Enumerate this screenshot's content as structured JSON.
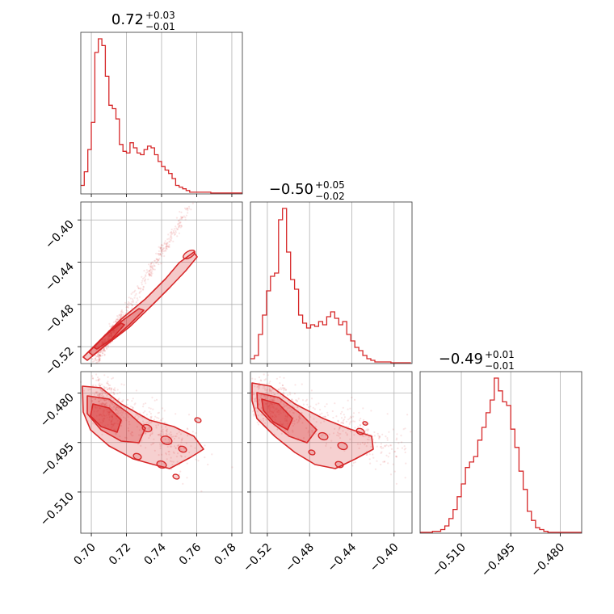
{
  "chart_data": {
    "type": "corner",
    "color": "#d62728",
    "params": [
      {
        "title_main": "0.72",
        "title_sup": "+0.03",
        "title_sub": "−0.01",
        "range": [
          0.694,
          0.786
        ],
        "ticks": [
          0.7,
          0.72,
          0.74,
          0.76,
          0.78
        ],
        "tick_labels": [
          "0.70",
          "0.72",
          "0.74",
          "0.76",
          "0.78"
        ],
        "hist_bin_width": 0.002,
        "hist_counts": [
          0.05,
          0.13,
          0.26,
          0.42,
          0.83,
          0.91,
          0.87,
          0.69,
          0.52,
          0.5,
          0.44,
          0.29,
          0.25,
          0.24,
          0.3,
          0.27,
          0.24,
          0.23,
          0.26,
          0.28,
          0.27,
          0.23,
          0.19,
          0.16,
          0.14,
          0.12,
          0.09,
          0.05,
          0.04,
          0.03,
          0.02,
          0.01,
          0.01,
          0.01,
          0.01,
          0.01,
          0.01,
          0.005,
          0.005,
          0.005,
          0.005,
          0.005,
          0.005,
          0.005,
          0.005,
          0.005
        ]
      },
      {
        "title_main": "−0.50",
        "title_sup": "+0.05",
        "title_sub": "−0.02",
        "range": [
          -0.536,
          -0.383
        ],
        "ticks": [
          -0.52,
          -0.48,
          -0.44,
          -0.4
        ],
        "tick_labels": [
          "−0.52",
          "−0.48",
          "−0.44",
          "−0.40"
        ],
        "hist_bin_width": 0.0038,
        "hist_counts": [
          0.03,
          0.05,
          0.18,
          0.3,
          0.45,
          0.54,
          0.56,
          0.89,
          0.96,
          0.69,
          0.52,
          0.46,
          0.3,
          0.25,
          0.22,
          0.24,
          0.23,
          0.26,
          0.24,
          0.29,
          0.32,
          0.28,
          0.24,
          0.26,
          0.18,
          0.14,
          0.1,
          0.08,
          0.05,
          0.03,
          0.02,
          0.01,
          0.01,
          0.01,
          0.01,
          0.005,
          0.005,
          0.005,
          0.005,
          0.005
        ]
      },
      {
        "title_main": "−0.49",
        "title_sup": "+0.01",
        "title_sub": "−0.01",
        "range": [
          -0.5225,
          -0.4735
        ],
        "ticks": [
          -0.51,
          -0.495,
          -0.48
        ],
        "tick_labels": [
          "−0.510",
          "−0.495",
          "−0.480"
        ],
        "hist_bin_width": 0.00125,
        "hist_counts": [
          0.005,
          0.005,
          0.005,
          0.01,
          0.01,
          0.02,
          0.04,
          0.08,
          0.13,
          0.2,
          0.27,
          0.36,
          0.39,
          0.42,
          0.51,
          0.58,
          0.66,
          0.73,
          0.85,
          0.78,
          0.72,
          0.7,
          0.57,
          0.47,
          0.34,
          0.24,
          0.12,
          0.07,
          0.03,
          0.02,
          0.01,
          0.005,
          0.005,
          0.005,
          0.005,
          0.005,
          0.005,
          0.005,
          0.005,
          0.005
        ]
      }
    ],
    "scatter_points": 600,
    "grid": true,
    "legend": "none"
  }
}
